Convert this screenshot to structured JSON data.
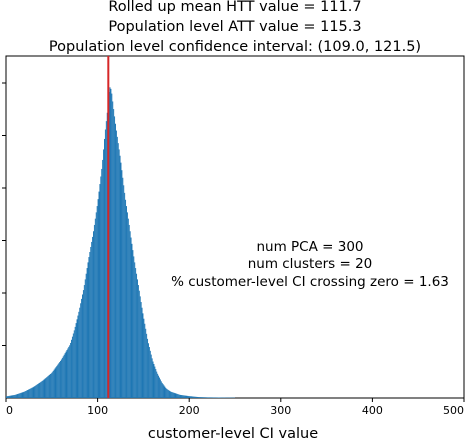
{
  "chart_data": {
    "type": "bar",
    "title_lines": [
      "Rolled up mean HTT value = 111.7",
      "Population level ATT value = 115.3",
      "Population level confidence interval: (109.0, 121.5)"
    ],
    "xlabel": "customer-level CI value",
    "ylabel": "",
    "xlim": [
      0,
      500
    ],
    "ylim": [
      0,
      1
    ],
    "xticks": [
      "0",
      "100",
      "200",
      "300",
      "400",
      "500"
    ],
    "grid": false,
    "annotation_lines": [
      "num PCA = 300",
      "num clusters = 20",
      "% customer-level CI crossing zero = 1.63"
    ],
    "reference_line": {
      "x": 111.7,
      "color": "#d62728"
    },
    "bar_color": "#1f77b4",
    "x": [
      0,
      10,
      20,
      30,
      40,
      50,
      60,
      70,
      75,
      80,
      85,
      90,
      95,
      100,
      105,
      108,
      111,
      113,
      115,
      117,
      120,
      125,
      130,
      135,
      140,
      145,
      150,
      155,
      160,
      165,
      170,
      175,
      180,
      190,
      200,
      210,
      220,
      250
    ],
    "values": [
      0.005,
      0.01,
      0.02,
      0.035,
      0.055,
      0.08,
      0.12,
      0.17,
      0.22,
      0.28,
      0.35,
      0.44,
      0.52,
      0.62,
      0.74,
      0.84,
      0.92,
      0.99,
      0.98,
      0.93,
      0.86,
      0.76,
      0.64,
      0.54,
      0.44,
      0.35,
      0.26,
      0.18,
      0.12,
      0.08,
      0.05,
      0.03,
      0.02,
      0.01,
      0.006,
      0.003,
      0.002,
      0.001
    ]
  }
}
